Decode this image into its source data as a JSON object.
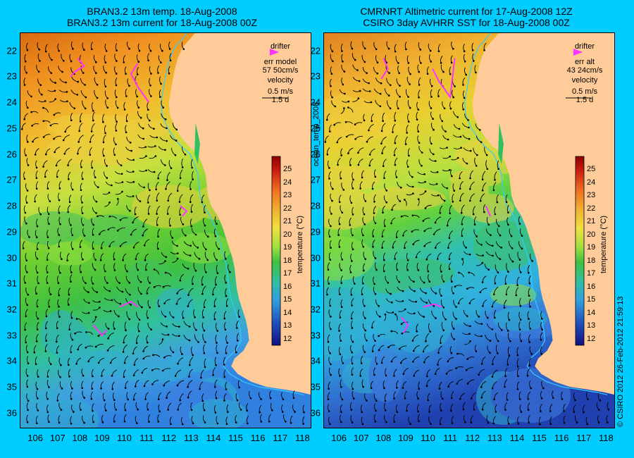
{
  "panels": [
    {
      "id": "left",
      "title_line1": "BRAN3.2 13m temp. 18-Aug-2008",
      "title_line2": "BRAN3.2 13m current for 18-Aug-2008 00Z",
      "legend": {
        "drifter": "drifter",
        "err_label": "err model",
        "err_value": "57 50cm/s",
        "velocity": "velocity",
        "scale_speed": "0.5 m/s",
        "scale_time": "1.5 d"
      }
    },
    {
      "id": "right",
      "title_line1": "CMRNRT Altimetric current for 17-Aug-2008 12Z",
      "title_line2": "CSIRO 3day AVHRR SST for 18-Aug-2008 00Z",
      "legend": {
        "drifter": "drifter",
        "err_label": "err alt",
        "err_value": "43 24cm/s",
        "velocity": "velocity",
        "scale_speed": "0.5 m/s",
        "scale_time": "1.5 d"
      }
    }
  ],
  "latitude_labels": [
    "22",
    "23",
    "24",
    "25",
    "26",
    "27",
    "28",
    "29",
    "30",
    "31",
    "32",
    "33",
    "34",
    "35",
    "36"
  ],
  "longitude_labels": [
    "106",
    "107",
    "108",
    "109",
    "110",
    "111",
    "112",
    "113",
    "114",
    "115",
    "116",
    "117",
    "118"
  ],
  "colorbar": {
    "ticks": [
      "25",
      "24",
      "23",
      "22",
      "21",
      "20",
      "19",
      "18",
      "17",
      "16",
      "15",
      "14",
      "13",
      "12"
    ],
    "label": "temperature (°C)",
    "range": [
      11.5,
      26
    ]
  },
  "side_label": "ocean_temp_2008",
  "footer_credit": "© CSIRO 2012   26-Feb-2012 21:59:13",
  "colors": {
    "background": "#00ccff",
    "land": "#ffcc99",
    "drifter": "#ff33ff",
    "arrow": "#000000",
    "shelf_contour": "#33ccff"
  }
}
